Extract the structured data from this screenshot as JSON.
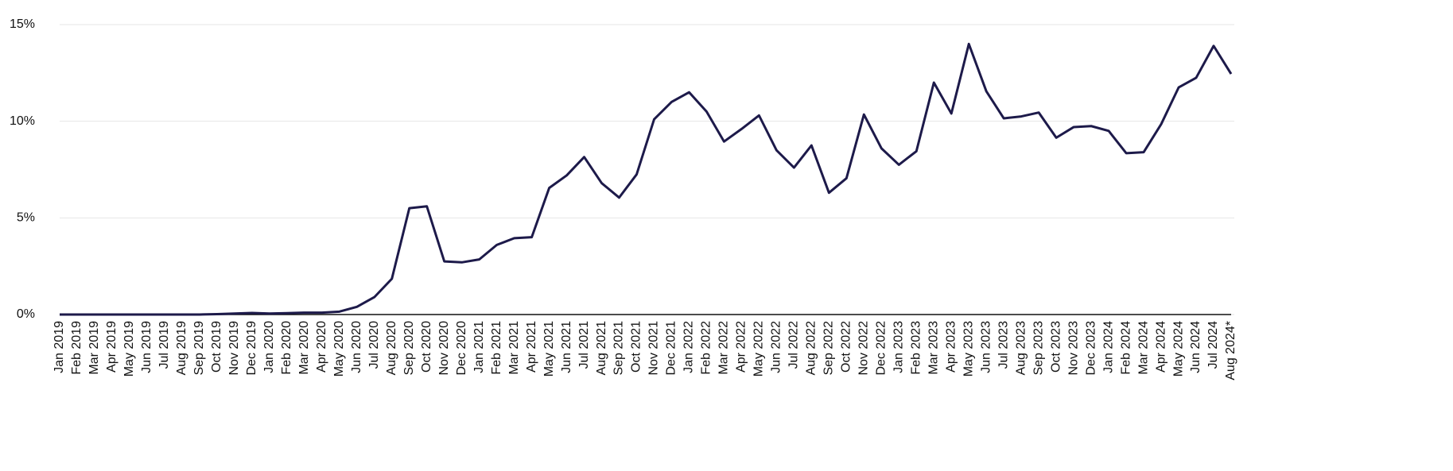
{
  "chart_data": {
    "type": "line",
    "categories": [
      "Jan 2019",
      "Feb 2019",
      "Mar 2019",
      "Apr 2019",
      "May 2019",
      "Jun 2019",
      "Jul 2019",
      "Aug 2019",
      "Sep 2019",
      "Oct 2019",
      "Nov 2019",
      "Dec 2019",
      "Jan 2020",
      "Feb 2020",
      "Mar 2020",
      "Apr 2020",
      "May 2020",
      "Jun 2020",
      "Jul 2020",
      "Aug 2020",
      "Sep 2020",
      "Oct 2020",
      "Nov 2020",
      "Dec 2020",
      "Jan 2021",
      "Feb 2021",
      "Mar 2021",
      "Apr 2021",
      "May 2021",
      "Jun 2021",
      "Jul 2021",
      "Aug 2021",
      "Sep 2021",
      "Oct 2021",
      "Nov 2021",
      "Dec 2021",
      "Jan 2022",
      "Feb 2022",
      "Mar 2022",
      "Apr 2022",
      "May 2022",
      "Jun 2022",
      "Jul 2022",
      "Aug 2022",
      "Sep 2022",
      "Oct 2022",
      "Nov 2022",
      "Dec 2022",
      "Jan 2023",
      "Feb 2023",
      "Mar 2023",
      "Apr 2023",
      "May 2023",
      "Jun 2023",
      "Jul 2023",
      "Aug 2023",
      "Sep 2023",
      "Oct 2023",
      "Nov 2023",
      "Dec 2023",
      "Jan 2024",
      "Feb 2024",
      "Mar 2024",
      "Apr 2024",
      "May 2024",
      "Jun 2024",
      "Jul 2024",
      "Aug 2024*"
    ],
    "values": [
      0,
      0,
      0,
      0,
      0,
      0,
      0,
      0,
      0,
      0.02,
      0.05,
      0.08,
      0.05,
      0.07,
      0.1,
      0.1,
      0.15,
      0.4,
      0.9,
      1.85,
      5.5,
      5.6,
      2.75,
      2.7,
      2.85,
      3.6,
      3.95,
      4.0,
      6.55,
      7.2,
      8.15,
      6.8,
      6.05,
      7.25,
      10.1,
      11.0,
      11.5,
      10.5,
      8.95,
      9.6,
      10.3,
      8.5,
      7.6,
      8.75,
      6.3,
      7.05,
      10.35,
      8.6,
      7.75,
      8.45,
      12.0,
      10.4,
      14.0,
      11.55,
      10.15,
      10.25,
      10.45,
      9.15,
      9.7,
      9.75,
      9.5,
      8.35,
      8.4,
      9.85,
      11.75,
      12.25,
      13.9,
      12.45
    ],
    "color": "#1d1a4a",
    "ylim": [
      0,
      15
    ],
    "yticks": [
      {
        "value": 0,
        "label": "0%"
      },
      {
        "value": 5,
        "label": "5%"
      },
      {
        "value": 10,
        "label": "10%"
      },
      {
        "value": 15,
        "label": "15%"
      }
    ],
    "grid": true
  }
}
